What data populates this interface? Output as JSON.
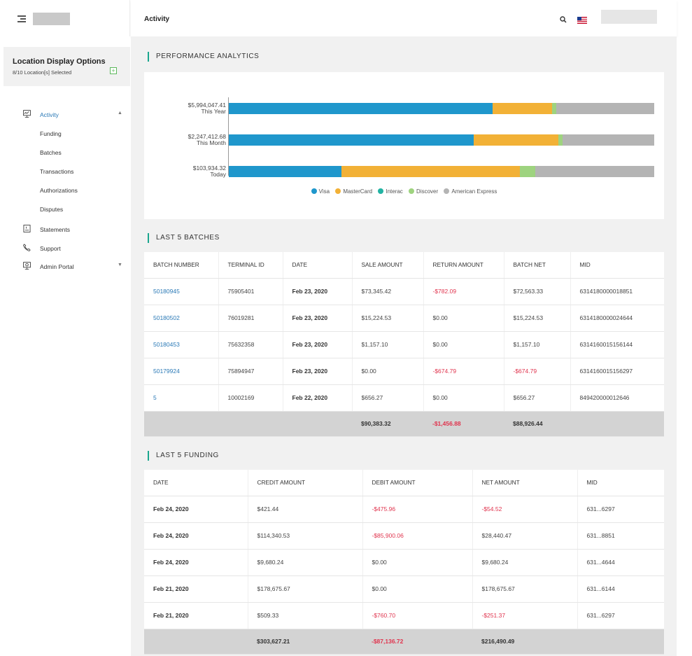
{
  "header": {
    "title": "Activity"
  },
  "sidebar": {
    "location_title": "Location Display Options",
    "location_sub": "8/10 Location[s] Selected",
    "add_icon": "+",
    "items": [
      {
        "label": "Activity",
        "icon": "activity-icon"
      },
      {
        "label": "Funding"
      },
      {
        "label": "Batches"
      },
      {
        "label": "Transactions"
      },
      {
        "label": "Authorizations"
      },
      {
        "label": "Disputes"
      },
      {
        "label": "Statements",
        "icon": "statements-icon"
      },
      {
        "label": "Support",
        "icon": "support-icon"
      },
      {
        "label": "Admin Portal",
        "icon": "admin-icon"
      }
    ]
  },
  "analytics": {
    "title": "PERFORMANCE ANALYTICS",
    "colors": {
      "visa": "#1f97cc",
      "mastercard": "#f2b136",
      "interac": "#22b3a3",
      "discover": "#9ed37f",
      "amex": "#b4b4b4"
    },
    "legend": [
      "Visa",
      "MasterCard",
      "Interac",
      "Discover",
      "American Express"
    ],
    "bars": [
      {
        "amount": "$5,994,047.41",
        "period": "This Year",
        "shares": [
          0.62,
          0.14,
          0.0,
          0.009,
          0.231
        ]
      },
      {
        "amount": "$2,247,412.68",
        "period": "This Month",
        "shares": [
          0.575,
          0.2,
          0.0,
          0.01,
          0.215
        ]
      },
      {
        "amount": "$103,934.32",
        "period": "Today",
        "shares": [
          0.265,
          0.42,
          0.0,
          0.035,
          0.28
        ]
      }
    ]
  },
  "batches": {
    "title": "LAST 5 BATCHES",
    "headers": [
      "BATCH NUMBER",
      "TERMINAL ID",
      "DATE",
      "SALE AMOUNT",
      "RETURN AMOUNT",
      "BATCH NET",
      "MID"
    ],
    "rows": [
      [
        "50180945",
        "75905401",
        "Feb 23, 2020",
        "$73,345.42",
        "-$782.09",
        "$72,563.33",
        "6314180000018851"
      ],
      [
        "50180502",
        "76019281",
        "Feb 23, 2020",
        "$15,224.53",
        "$0.00",
        "$15,224.53",
        "6314180000024644"
      ],
      [
        "50180453",
        "75632358",
        "Feb 23, 2020",
        "$1,157.10",
        "$0.00",
        "$1,157.10",
        "6314160015156144"
      ],
      [
        "50179924",
        "75894947",
        "Feb 23, 2020",
        "$0.00",
        "-$674.79",
        "-$674.79",
        "6314160015156297"
      ],
      [
        "5",
        "10002169",
        "Feb 22, 2020",
        "$656.27",
        "$0.00",
        "$656.27",
        "849420000012646"
      ]
    ],
    "totals": {
      "sale": "$90,383.32",
      "return": "-$1,456.88",
      "net": "$88,926.44"
    }
  },
  "funding": {
    "title": "LAST 5 FUNDING",
    "headers": [
      "DATE",
      "CREDIT AMOUNT",
      "DEBIT AMOUNT",
      "NET AMOUNT",
      "MID"
    ],
    "rows": [
      [
        "Feb 24, 2020",
        "$421.44",
        "-$475.96",
        "-$54.52",
        "631...6297"
      ],
      [
        "Feb 24, 2020",
        "$114,340.53",
        "-$85,900.06",
        "$28,440.47",
        "631...8851"
      ],
      [
        "Feb 24, 2020",
        "$9,680.24",
        "$0.00",
        "$9,680.24",
        "631...4644"
      ],
      [
        "Feb 21, 2020",
        "$178,675.67",
        "$0.00",
        "$178,675.67",
        "631...6144"
      ],
      [
        "Feb 21, 2020",
        "$509.33",
        "-$760.70",
        "-$251.37",
        "631...6297"
      ]
    ],
    "totals": {
      "credit": "$303,627.21",
      "debit": "-$87,136.72",
      "net": "$216,490.49"
    }
  }
}
